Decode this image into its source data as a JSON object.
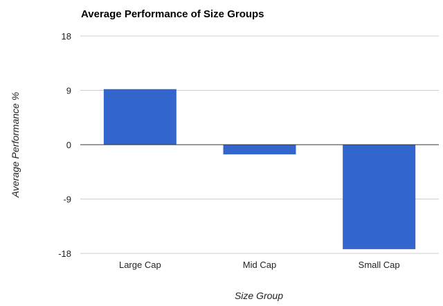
{
  "chart_data": {
    "type": "bar",
    "title": "Average Performance of Size Groups",
    "xlabel": "Size Group",
    "ylabel": "Average Performance %",
    "categories": [
      "Large Cap",
      "Mid Cap",
      "Small Cap"
    ],
    "values": [
      9.2,
      -1.6,
      -17.3
    ],
    "ylim": [
      -18,
      18
    ],
    "yticks": [
      "18",
      "9",
      "0",
      "-9",
      "-18"
    ],
    "grid": true,
    "legend": "none",
    "colors": {
      "bar": "#3366cc",
      "grid": "#cccccc",
      "zero_line": "#333333"
    }
  }
}
